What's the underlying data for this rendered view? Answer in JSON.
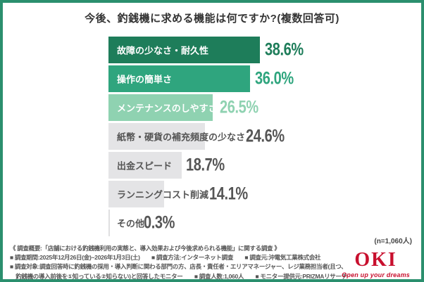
{
  "title": "今後、釣銭機に求める機能は何ですか?(複数回答可)",
  "chart_data": {
    "type": "bar",
    "orientation": "horizontal",
    "title": "今後、釣銭機に求める機能は何ですか?(複数回答可)",
    "unit": "%",
    "xlim": [
      0,
      40
    ],
    "categories": [
      "故障の少なさ・耐久性",
      "操作の簡単さ",
      "メンテナンスのしやすさ",
      "紙幣・硬貨の補充頻度の少なさ",
      "出金スピード",
      "ランニングコスト削減",
      "その他"
    ],
    "values": [
      38.6,
      36.0,
      26.5,
      24.6,
      18.7,
      14.1,
      0.3
    ],
    "value_labels": [
      "38.6%",
      "36.0%",
      "26.5%",
      "24.6%",
      "18.7%",
      "14.1%",
      "0.3%"
    ],
    "bar_colors": [
      "#1e7d5a",
      "#2fa57e",
      "#8fd2b1",
      "#e4e4e6",
      "#e4e4e6",
      "#e4e4e6",
      "#dfdfe1"
    ],
    "label_colors": [
      "#ffffff",
      "#ffffff",
      "#ffffff",
      "#555555",
      "#555555",
      "#555555",
      "#555555"
    ],
    "value_colors": [
      "#1e7d5a",
      "#2fa57e",
      "#8fd2b1",
      "#555555",
      "#555555",
      "#555555",
      "#555555"
    ],
    "sample_note": "(n=1,060人)",
    "legend": "none",
    "grid": "off"
  },
  "footer": {
    "lines": [
      "《 調査概要:「店舗における釣銭機利用の実態と、導入効果および今後求められる機能」に関する調査 》",
      "■ 調査期間:2025年12月26日(金)~2026年1月3日(土)　　■ 調査方法:インターネット調査　　■ 調査元:沖電気工業株式会社",
      "■ 調査対象:調査回答時に釣銭機の採用・導入判断に関わる部門の方、店長・責任者・エリアマネージャー、レジ業務担当者(且つ、",
      "　釣銭機の導入前後を①知っている②知らない)と回答したモニター　　■ 調査人数:1,060人　　■ モニター提供元:PRIZMAリサーチ"
    ],
    "logo": {
      "text": "OKI",
      "tagline": "Open up your dreams",
      "color": "#c8102e"
    }
  },
  "colors": {
    "frame": "#2b8f6e",
    "background": "#ffffff",
    "title_text": "#333333"
  }
}
